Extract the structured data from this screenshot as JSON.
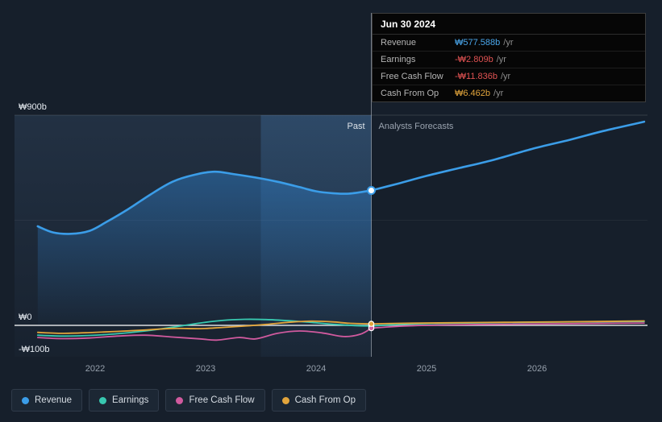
{
  "tooltip": {
    "date": "Jun 30 2024",
    "rows": [
      {
        "label": "Revenue",
        "value": "₩577.588b",
        "suffix": "/yr",
        "color": "#4aa7ec"
      },
      {
        "label": "Earnings",
        "value": "-₩2.809b",
        "suffix": "/yr",
        "color": "#e05252"
      },
      {
        "label": "Free Cash Flow",
        "value": "-₩11.836b",
        "suffix": "/yr",
        "color": "#e05252"
      },
      {
        "label": "Cash From Op",
        "value": "₩6.462b",
        "suffix": "/yr",
        "color": "#e2a53c"
      }
    ]
  },
  "legend": {
    "items": [
      {
        "label": "Revenue",
        "color": "#3b9de8"
      },
      {
        "label": "Earnings",
        "color": "#38c8b0"
      },
      {
        "label": "Free Cash Flow",
        "color": "#d05a9e"
      },
      {
        "label": "Cash From Op",
        "color": "#e2a53c"
      }
    ]
  },
  "chart_data": {
    "type": "line",
    "unit": "KRW billions",
    "y_axis": {
      "ticks": [
        {
          "label": "₩900b",
          "value": 900,
          "line": "major"
        },
        {
          "label": "",
          "value": 450,
          "line": "faint"
        },
        {
          "label": "₩0",
          "value": 0,
          "line": "zero"
        },
        {
          "label": "-₩100b",
          "value": -100,
          "line": "none"
        }
      ]
    },
    "x_axis": {
      "range": [
        2021.27,
        2027.0
      ],
      "ticks": [
        {
          "label": "2022",
          "value": 2022
        },
        {
          "label": "2023",
          "value": 2023
        },
        {
          "label": "2024",
          "value": 2024
        },
        {
          "label": "2025",
          "value": 2025
        },
        {
          "label": "2026",
          "value": 2026
        }
      ]
    },
    "divider": {
      "x": 2024.5,
      "past_label": "Past",
      "forecast_label": "Analysts Forecasts"
    },
    "highlight_band": {
      "from": 2023.5,
      "to": 2024.5
    },
    "series": [
      {
        "name": "Revenue",
        "color": "#3b9de8",
        "divider_value": 577.588,
        "past": [
          [
            2021.48,
            424
          ],
          [
            2021.62,
            398
          ],
          [
            2021.78,
            392
          ],
          [
            2021.95,
            405
          ],
          [
            2022.1,
            442
          ],
          [
            2022.3,
            498
          ],
          [
            2022.5,
            560
          ],
          [
            2022.7,
            615
          ],
          [
            2022.9,
            645
          ],
          [
            2023.08,
            658
          ],
          [
            2023.25,
            648
          ],
          [
            2023.45,
            633
          ],
          [
            2023.65,
            615
          ],
          [
            2023.85,
            592
          ],
          [
            2024.0,
            574
          ],
          [
            2024.15,
            566
          ],
          [
            2024.3,
            564
          ],
          [
            2024.5,
            577.588
          ]
        ],
        "forecast": [
          [
            2024.5,
            577.588
          ],
          [
            2024.75,
            608
          ],
          [
            2025.0,
            640
          ],
          [
            2025.3,
            674
          ],
          [
            2025.6,
            708
          ],
          [
            2025.95,
            755
          ],
          [
            2026.3,
            795
          ],
          [
            2026.6,
            832
          ],
          [
            2026.97,
            872
          ]
        ]
      },
      {
        "name": "Earnings",
        "color": "#38c8b0",
        "divider_value": -2.809,
        "past": [
          [
            2021.48,
            -42
          ],
          [
            2021.7,
            -46
          ],
          [
            2021.95,
            -43
          ],
          [
            2022.2,
            -36
          ],
          [
            2022.45,
            -24
          ],
          [
            2022.7,
            -8
          ],
          [
            2022.95,
            10
          ],
          [
            2023.15,
            21
          ],
          [
            2023.35,
            26
          ],
          [
            2023.55,
            25
          ],
          [
            2023.75,
            20
          ],
          [
            2023.95,
            13
          ],
          [
            2024.15,
            5
          ],
          [
            2024.35,
            -1
          ],
          [
            2024.5,
            -2.809
          ]
        ],
        "forecast": [
          [
            2024.5,
            -2.809
          ],
          [
            2024.8,
            5
          ],
          [
            2025.2,
            9
          ],
          [
            2025.7,
            12
          ],
          [
            2026.2,
            14
          ],
          [
            2026.97,
            17
          ]
        ]
      },
      {
        "name": "Free Cash Flow",
        "color": "#d05a9e",
        "divider_value": -11.836,
        "past": [
          [
            2021.48,
            -52
          ],
          [
            2021.7,
            -57
          ],
          [
            2021.95,
            -54
          ],
          [
            2022.2,
            -46
          ],
          [
            2022.45,
            -42
          ],
          [
            2022.7,
            -50
          ],
          [
            2022.95,
            -58
          ],
          [
            2023.1,
            -63
          ],
          [
            2023.3,
            -52
          ],
          [
            2023.45,
            -58
          ],
          [
            2023.65,
            -34
          ],
          [
            2023.85,
            -24
          ],
          [
            2024.05,
            -32
          ],
          [
            2024.25,
            -48
          ],
          [
            2024.4,
            -38
          ],
          [
            2024.5,
            -11.836
          ]
        ],
        "forecast": [
          [
            2024.5,
            -11.836
          ],
          [
            2024.8,
            -3
          ],
          [
            2025.2,
            2
          ],
          [
            2025.7,
            5
          ],
          [
            2026.2,
            7
          ],
          [
            2026.97,
            10
          ]
        ]
      },
      {
        "name": "Cash From Op",
        "color": "#e2a53c",
        "divider_value": 6.462,
        "past": [
          [
            2021.48,
            -30
          ],
          [
            2021.7,
            -34
          ],
          [
            2021.95,
            -31
          ],
          [
            2022.2,
            -26
          ],
          [
            2022.45,
            -20
          ],
          [
            2022.7,
            -13
          ],
          [
            2022.95,
            -14
          ],
          [
            2023.15,
            -9
          ],
          [
            2023.35,
            -3
          ],
          [
            2023.55,
            4
          ],
          [
            2023.75,
            13
          ],
          [
            2023.95,
            18
          ],
          [
            2024.15,
            15
          ],
          [
            2024.3,
            9
          ],
          [
            2024.5,
            6.462
          ]
        ],
        "forecast": [
          [
            2024.5,
            6.462
          ],
          [
            2024.8,
            9
          ],
          [
            2025.2,
            11
          ],
          [
            2025.7,
            13
          ],
          [
            2026.2,
            15
          ],
          [
            2026.97,
            19
          ]
        ]
      }
    ]
  }
}
